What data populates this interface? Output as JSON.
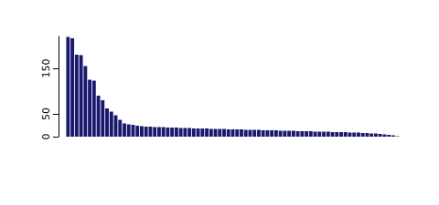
{
  "chart_data": {
    "type": "bar",
    "categories": [
      null,
      null,
      null,
      null,
      null,
      null,
      null,
      null,
      null,
      null,
      null,
      null,
      null,
      null,
      null,
      null,
      null,
      null,
      null,
      null,
      null,
      null,
      null,
      null,
      null,
      null,
      null,
      null,
      null,
      null,
      null,
      null,
      null,
      null,
      null,
      null,
      null,
      null,
      null,
      null,
      null,
      null,
      null,
      null,
      null,
      null,
      null,
      null,
      null,
      null,
      null,
      null,
      null,
      null,
      null,
      null,
      null,
      null,
      null,
      null,
      null,
      null,
      null,
      null,
      null,
      null,
      null,
      null,
      null,
      null,
      null,
      null,
      null,
      null,
      null,
      null,
      null
    ],
    "values": [
      219,
      216,
      180,
      179,
      155,
      125,
      123,
      90,
      80,
      62,
      55,
      47,
      37,
      29,
      27,
      26,
      24,
      23,
      22,
      22,
      21,
      21,
      21,
      20,
      20,
      20,
      19,
      19,
      19,
      18,
      18,
      18,
      18,
      17,
      17,
      17,
      17,
      16,
      16,
      16,
      16,
      15,
      15,
      15,
      15,
      14,
      14,
      14,
      14,
      13,
      13,
      13,
      13,
      12,
      12,
      12,
      12,
      11,
      11,
      11,
      11,
      10,
      10,
      10,
      10,
      9,
      9,
      9,
      8,
      8,
      7,
      7,
      6,
      5,
      4,
      3,
      1
    ],
    "color": "#191970",
    "ylim": [
      0,
      220
    ],
    "yticks": [
      0,
      50,
      150
    ],
    "grid": false,
    "tick_labels": "y"
  }
}
